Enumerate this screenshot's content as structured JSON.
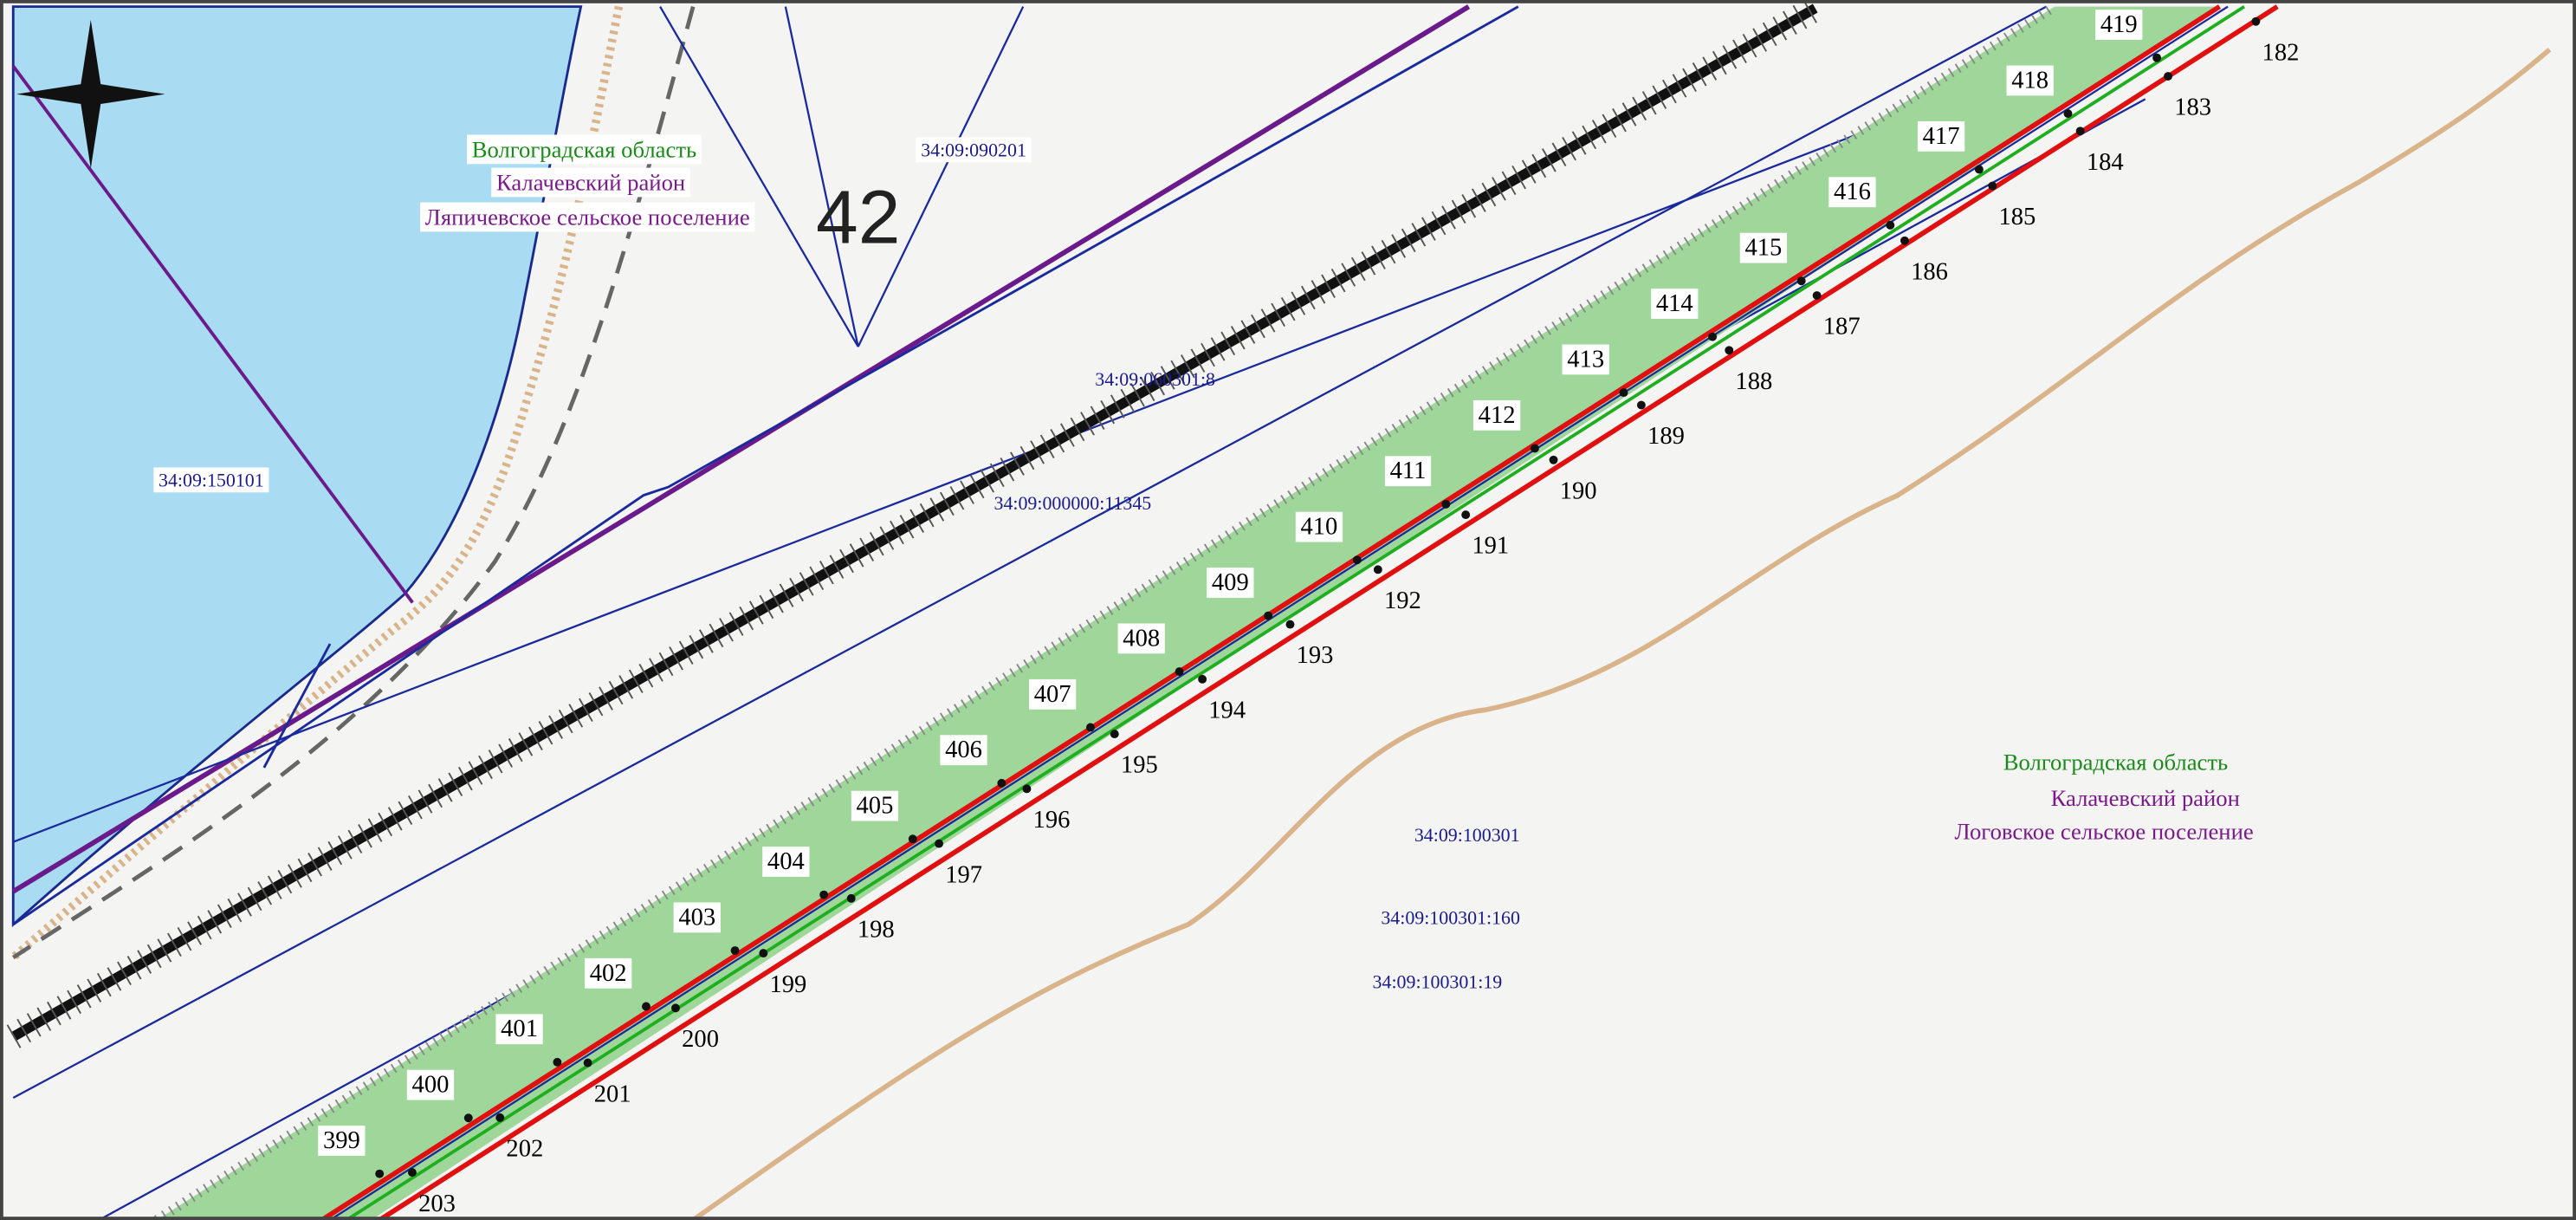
{
  "region_left": [
    "Волгоградская область",
    "Калачевский район",
    "Ляпичевское сельское поселение"
  ],
  "region_right": [
    "Волгоградская область",
    "Калачевский район",
    "Логовское сельское поселение"
  ],
  "cadastral": [
    "34:09:090201",
    "34:09:060301:8",
    "34:09:000000:11345",
    "34:09:150101",
    "34:09:100301",
    "34:09:100301:160",
    "34:09:100301:19"
  ],
  "sheet": "42",
  "points_upper": [
    399,
    400,
    401,
    402,
    403,
    404,
    405,
    406,
    407,
    408,
    409,
    410,
    411,
    412,
    413,
    414,
    415,
    416,
    417,
    418,
    419
  ],
  "points_lower": [
    182,
    183,
    184,
    185,
    186,
    187,
    188,
    189,
    190,
    191,
    192,
    193,
    194,
    195,
    196,
    197,
    198,
    199,
    200,
    201,
    202,
    203
  ]
}
